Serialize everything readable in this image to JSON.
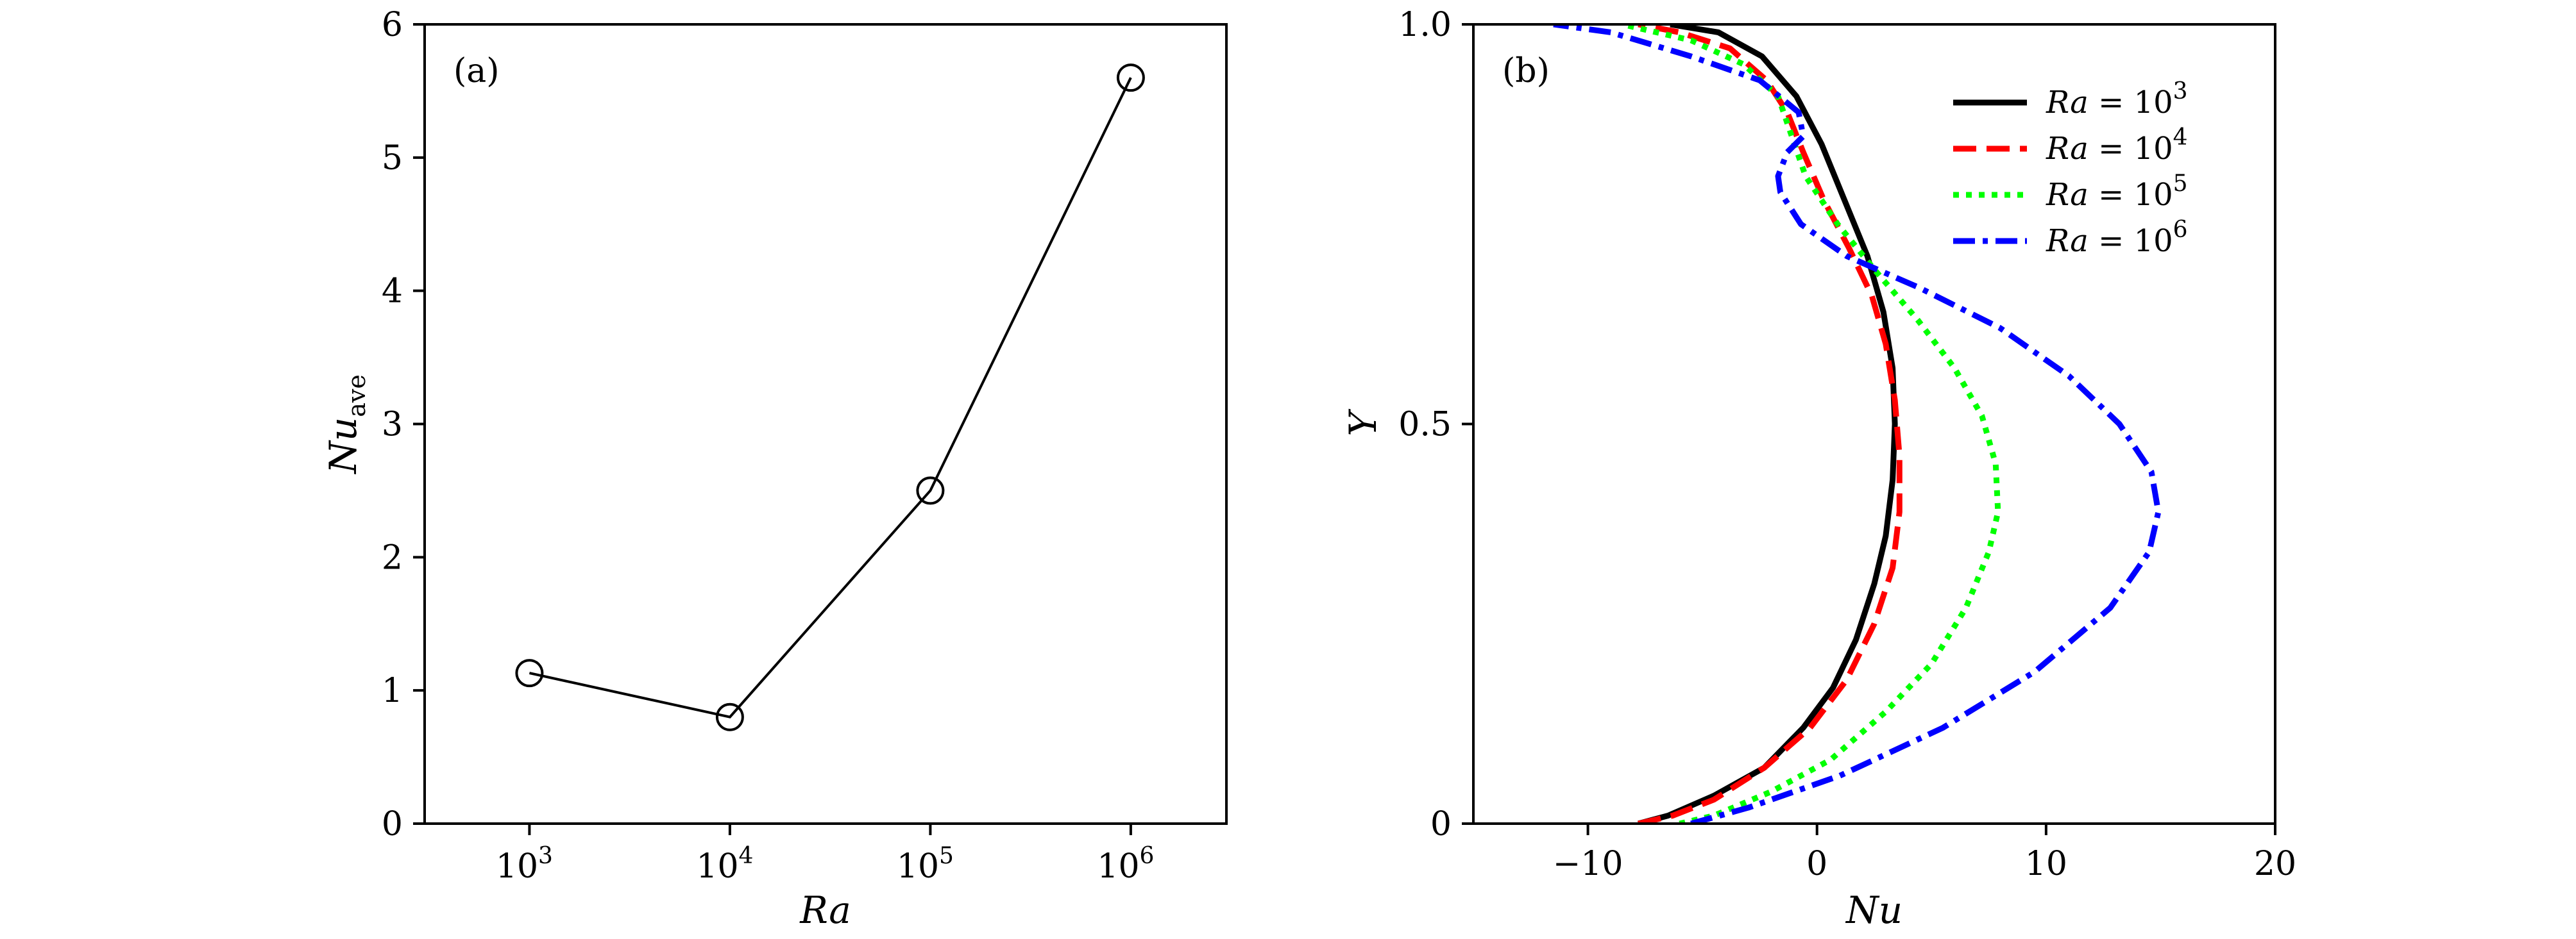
{
  "chart_data": [
    {
      "type": "line",
      "panel_label": "(a)",
      "xlabel": "Ra",
      "ylabel": {
        "base": "Nu",
        "subscript": "ave"
      },
      "x_scale": "log",
      "xlim": [
        300,
        3000000
      ],
      "ylim": [
        0,
        6
      ],
      "x_ticks": [
        {
          "value": 1000,
          "base": "10",
          "exp": "3"
        },
        {
          "value": 10000,
          "base": "10",
          "exp": "4"
        },
        {
          "value": 100000,
          "base": "10",
          "exp": "5"
        },
        {
          "value": 1000000,
          "base": "10",
          "exp": "6"
        }
      ],
      "y_ticks": [
        0,
        1,
        2,
        3,
        4,
        5,
        6
      ],
      "grid": false,
      "marker": "open-circle",
      "series": [
        {
          "color": "#000000",
          "points": [
            {
              "x": 1000,
              "y": 1.13
            },
            {
              "x": 10000,
              "y": 0.8
            },
            {
              "x": 100000,
              "y": 2.5
            },
            {
              "x": 1000000,
              "y": 5.6
            }
          ]
        }
      ]
    },
    {
      "type": "line",
      "panel_label": "(b)",
      "xlabel": "Nu",
      "ylabel": "Y",
      "xlim": [
        -15,
        20
      ],
      "ylim": [
        0,
        1
      ],
      "x_ticks": [
        {
          "value": -10,
          "label": "−10"
        },
        {
          "value": 0,
          "label": "0"
        },
        {
          "value": 10,
          "label": "10"
        },
        {
          "value": 20,
          "label": "20"
        }
      ],
      "y_ticks": [
        {
          "value": 0,
          "label": "0"
        },
        {
          "value": 0.5,
          "label": "0.5"
        },
        {
          "value": 1,
          "label": "1.0"
        }
      ],
      "grid": false,
      "legend_position": "top-right",
      "series": [
        {
          "name": {
            "prefix": "Ra",
            "eq": " = ",
            "base": "10",
            "exp": "3"
          },
          "color": "#000000",
          "dash": "solid",
          "points": [
            [
              -7.8,
              0.0
            ],
            [
              -6.5,
              0.01
            ],
            [
              -4.5,
              0.035
            ],
            [
              -2.3,
              0.07
            ],
            [
              -0.6,
              0.12
            ],
            [
              0.7,
              0.17
            ],
            [
              1.7,
              0.23
            ],
            [
              2.5,
              0.3
            ],
            [
              3.0,
              0.36
            ],
            [
              3.3,
              0.43
            ],
            [
              3.4,
              0.5
            ],
            [
              3.3,
              0.57
            ],
            [
              2.9,
              0.64
            ],
            [
              2.2,
              0.71
            ],
            [
              1.2,
              0.78
            ],
            [
              0.2,
              0.85
            ],
            [
              -0.9,
              0.91
            ],
            [
              -2.4,
              0.96
            ],
            [
              -4.3,
              0.99
            ],
            [
              -6.4,
              1.0
            ]
          ]
        },
        {
          "name": {
            "prefix": "Ra",
            "eq": " = ",
            "base": "10",
            "exp": "4"
          },
          "color": "#ff0000",
          "dash": "dashed",
          "points": [
            [
              -7.8,
              0.0
            ],
            [
              -6.3,
              0.01
            ],
            [
              -4.5,
              0.03
            ],
            [
              -2.3,
              0.07
            ],
            [
              -0.3,
              0.12
            ],
            [
              1.3,
              0.18
            ],
            [
              2.5,
              0.25
            ],
            [
              3.3,
              0.32
            ],
            [
              3.6,
              0.39
            ],
            [
              3.6,
              0.46
            ],
            [
              3.4,
              0.53
            ],
            [
              3.0,
              0.6
            ],
            [
              2.4,
              0.66
            ],
            [
              1.4,
              0.72
            ],
            [
              0.3,
              0.78
            ],
            [
              -0.6,
              0.84
            ],
            [
              -1.3,
              0.89
            ],
            [
              -2.2,
              0.93
            ],
            [
              -3.8,
              0.97
            ],
            [
              -6.0,
              0.99
            ],
            [
              -7.8,
              1.0
            ]
          ]
        },
        {
          "name": {
            "prefix": "Ra",
            "eq": " = ",
            "base": "10",
            "exp": "5"
          },
          "color": "#00ff00",
          "dash": "dotted",
          "points": [
            [
              -6.0,
              0.0
            ],
            [
              -4.5,
              0.01
            ],
            [
              -2.0,
              0.04
            ],
            [
              0.6,
              0.08
            ],
            [
              3.0,
              0.14
            ],
            [
              5.0,
              0.2
            ],
            [
              6.5,
              0.27
            ],
            [
              7.5,
              0.34
            ],
            [
              7.9,
              0.39
            ],
            [
              7.8,
              0.45
            ],
            [
              7.2,
              0.51
            ],
            [
              6.0,
              0.57
            ],
            [
              4.4,
              0.63
            ],
            [
              2.6,
              0.69
            ],
            [
              0.9,
              0.75
            ],
            [
              -0.5,
              0.81
            ],
            [
              -1.1,
              0.86
            ],
            [
              -1.7,
              0.91
            ],
            [
              -3.2,
              0.95
            ],
            [
              -5.5,
              0.98
            ],
            [
              -8.5,
              1.0
            ]
          ]
        },
        {
          "name": {
            "prefix": "Ra",
            "eq": " = ",
            "base": "10",
            "exp": "6"
          },
          "color": "#0000ff",
          "dash": "dashdot",
          "points": [
            [
              -5.5,
              0.0
            ],
            [
              -3.0,
              0.02
            ],
            [
              1.0,
              0.06
            ],
            [
              5.5,
              0.12
            ],
            [
              9.5,
              0.19
            ],
            [
              12.8,
              0.27
            ],
            [
              14.5,
              0.34
            ],
            [
              14.9,
              0.39
            ],
            [
              14.6,
              0.44
            ],
            [
              13.2,
              0.5
            ],
            [
              11.0,
              0.56
            ],
            [
              8.0,
              0.62
            ],
            [
              4.5,
              0.67
            ],
            [
              1.3,
              0.71
            ],
            [
              -0.7,
              0.75
            ],
            [
              -1.6,
              0.79
            ],
            [
              -1.7,
              0.81
            ],
            [
              -1.3,
              0.84
            ],
            [
              -0.6,
              0.86
            ],
            [
              -0.8,
              0.89
            ],
            [
              -2.5,
              0.93
            ],
            [
              -5.5,
              0.96
            ],
            [
              -9.0,
              0.99
            ],
            [
              -11.5,
              1.0
            ]
          ]
        }
      ]
    }
  ]
}
